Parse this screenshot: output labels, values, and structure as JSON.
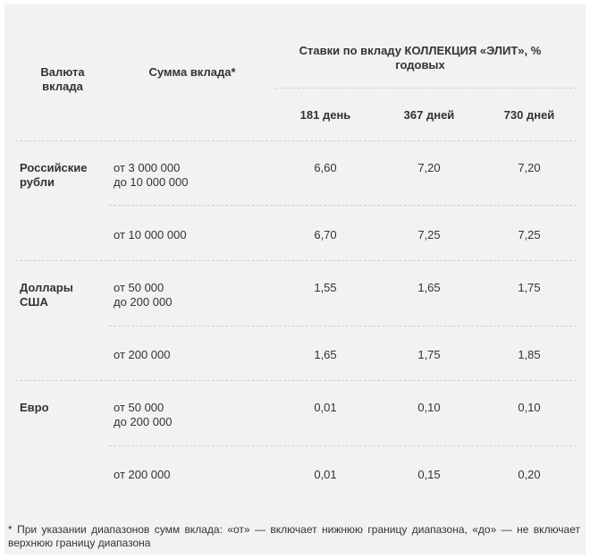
{
  "table": {
    "header": {
      "currency": "Валюта вклада",
      "amount": "Сумма вклада*",
      "rates_title": "Ставки по вкладу КОЛЛЕКЦИЯ  «ЭЛИТ», % годовых",
      "terms": [
        "181 день",
        "367 дней",
        "730 дней"
      ]
    },
    "rows": [
      {
        "currency": "Российские рубли",
        "amount": [
          "от 3 000 000",
          "до 10 000 000"
        ],
        "rates": [
          "6,60",
          "7,20",
          "7,20"
        ]
      },
      {
        "currency": "",
        "amount": [
          "от 10 000 000",
          ""
        ],
        "rates": [
          "6,70",
          "7,25",
          "7,25"
        ]
      },
      {
        "currency": "Доллары США",
        "amount": [
          "от 50 000",
          "до 200 000"
        ],
        "rates": [
          "1,55",
          "1,65",
          "1,75"
        ]
      },
      {
        "currency": "",
        "amount": [
          "от 200 000",
          ""
        ],
        "rates": [
          "1,65",
          "1,75",
          "1,85"
        ]
      },
      {
        "currency": "Евро",
        "amount": [
          "от 50 000",
          "до 200 000"
        ],
        "rates": [
          "0,01",
          "0,10",
          "0,10"
        ]
      },
      {
        "currency": "",
        "amount": [
          "от 200 000",
          ""
        ],
        "rates": [
          "0,01",
          "0,15",
          "0,20"
        ]
      }
    ]
  },
  "footnote": "* При указании диапазонов сумм вклада: «от» — включает нижнюю границу диапазона, «до» — не включает верхнюю границу диапазона"
}
